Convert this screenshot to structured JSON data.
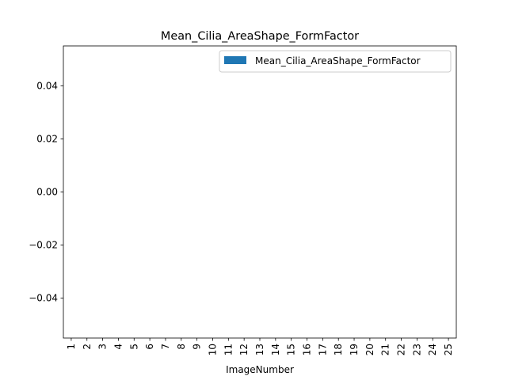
{
  "chart_data": {
    "type": "bar",
    "title": "Mean_Cilia_AreaShape_FormFactor",
    "xlabel": "ImageNumber",
    "ylabel": "",
    "categories": [
      "1",
      "2",
      "3",
      "4",
      "5",
      "6",
      "7",
      "8",
      "9",
      "10",
      "11",
      "12",
      "13",
      "14",
      "15",
      "16",
      "17",
      "18",
      "19",
      "20",
      "21",
      "22",
      "23",
      "24",
      "25"
    ],
    "series": [
      {
        "name": "Mean_Cilia_AreaShape_FormFactor",
        "color": "#1f77b4",
        "values": [
          null,
          null,
          null,
          null,
          null,
          null,
          null,
          null,
          null,
          null,
          null,
          null,
          null,
          null,
          null,
          null,
          null,
          null,
          null,
          null,
          null,
          null,
          null,
          null,
          null
        ]
      }
    ],
    "ylim": [
      -0.055,
      0.055
    ],
    "yticks": [
      -0.04,
      -0.02,
      0.0,
      0.02,
      0.04
    ],
    "ytick_labels": [
      "−0.04",
      "−0.02",
      "0.00",
      "0.02",
      "0.04"
    ],
    "grid": false,
    "legend": "upper right"
  }
}
